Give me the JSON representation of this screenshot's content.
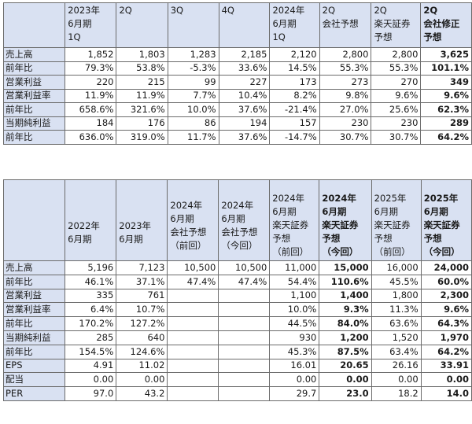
{
  "table1": {
    "headers": [
      [
        "2023年",
        "6月期",
        "1Q"
      ],
      [
        "2Q"
      ],
      [
        "3Q"
      ],
      [
        "4Q"
      ],
      [
        "2024年",
        "6月期",
        "1Q"
      ],
      [
        "2Q",
        "会社予想"
      ],
      [
        "2Q",
        "楽天証券",
        "予想"
      ],
      [
        "2Q",
        "会社修正",
        "予想"
      ]
    ],
    "rows": [
      {
        "label": "売上高",
        "values": [
          "1,852",
          "1,803",
          "1,283",
          "2,185",
          "2,120",
          "2,800",
          "2,800",
          "3,625"
        ]
      },
      {
        "label": "前年比",
        "values": [
          "79.3%",
          "53.8%",
          "-5.3%",
          "33.6%",
          "14.5%",
          "55.3%",
          "55.3%",
          "101.1%"
        ]
      },
      {
        "label": "営業利益",
        "values": [
          "220",
          "215",
          "99",
          "227",
          "173",
          "273",
          "270",
          "349"
        ]
      },
      {
        "label": "営業利益率",
        "values": [
          "11.9%",
          "11.9%",
          "7.7%",
          "10.4%",
          "8.2%",
          "9.8%",
          "9.6%",
          "9.6%"
        ]
      },
      {
        "label": "前年比",
        "values": [
          "658.6%",
          "321.6%",
          "10.0%",
          "37.6%",
          "-21.4%",
          "27.0%",
          "25.6%",
          "62.3%"
        ]
      },
      {
        "label": "当期純利益",
        "values": [
          "184",
          "176",
          "86",
          "194",
          "157",
          "230",
          "230",
          "289"
        ]
      },
      {
        "label": "前年比",
        "values": [
          "636.0%",
          "319.0%",
          "11.7%",
          "37.6%",
          "-14.7%",
          "30.7%",
          "30.7%",
          "64.2%"
        ]
      }
    ]
  },
  "table2": {
    "headers": [
      [
        "2022年",
        "6月期"
      ],
      [
        "2023年",
        "6月期"
      ],
      [
        "2024年",
        "6月期",
        "会社予想",
        "（前回）"
      ],
      [
        "2024年",
        "6月期",
        "会社予想",
        "（今回）"
      ],
      [
        "2024年",
        "6月期",
        "楽天証券",
        "予想",
        "（前回）"
      ],
      [
        "2024年",
        "6月期",
        "楽天証券",
        "予想",
        "（今回）"
      ],
      [
        "2025年",
        "6月期",
        "楽天証券",
        "予想",
        "（前回）"
      ],
      [
        "2025年",
        "6月期",
        "楽天証券",
        "予想",
        "（今回）"
      ]
    ],
    "rows": [
      {
        "label": "売上高",
        "values": [
          "5,196",
          "7,123",
          "10,500",
          "10,500",
          "11,000",
          "15,000",
          "16,000",
          "24,000"
        ]
      },
      {
        "label": "前年比",
        "values": [
          "46.1%",
          "37.1%",
          "47.4%",
          "47.4%",
          "54.4%",
          "110.6%",
          "45.5%",
          "60.0%"
        ]
      },
      {
        "label": "営業利益",
        "values": [
          "335",
          "761",
          "",
          "",
          "1,100",
          "1,400",
          "1,800",
          "2,300"
        ]
      },
      {
        "label": "営業利益率",
        "values": [
          "6.4%",
          "10.7%",
          "",
          "",
          "10.0%",
          "9.3%",
          "11.3%",
          "9.6%"
        ]
      },
      {
        "label": "前年比",
        "values": [
          "170.2%",
          "127.2%",
          "",
          "",
          "44.5%",
          "84.0%",
          "63.6%",
          "64.3%"
        ]
      },
      {
        "label": "当期純利益",
        "values": [
          "285",
          "640",
          "",
          "",
          "930",
          "1,200",
          "1,520",
          "1,970"
        ]
      },
      {
        "label": "前年比",
        "values": [
          "154.5%",
          "124.6%",
          "",
          "",
          "45.3%",
          "87.5%",
          "63.4%",
          "64.2%"
        ]
      },
      {
        "label": "EPS",
        "values": [
          "4.91",
          "11.02",
          "",
          "",
          "16.01",
          "20.65",
          "26.16",
          "33.91"
        ]
      },
      {
        "label": "配当",
        "values": [
          "0.00",
          "0.00",
          "",
          "",
          "0.00",
          "0.00",
          "0.00",
          "0.00"
        ]
      },
      {
        "label": "PER",
        "values": [
          "97.0",
          "43.2",
          "",
          "",
          "29.7",
          "23.0",
          "18.2",
          "14.0"
        ]
      }
    ]
  }
}
